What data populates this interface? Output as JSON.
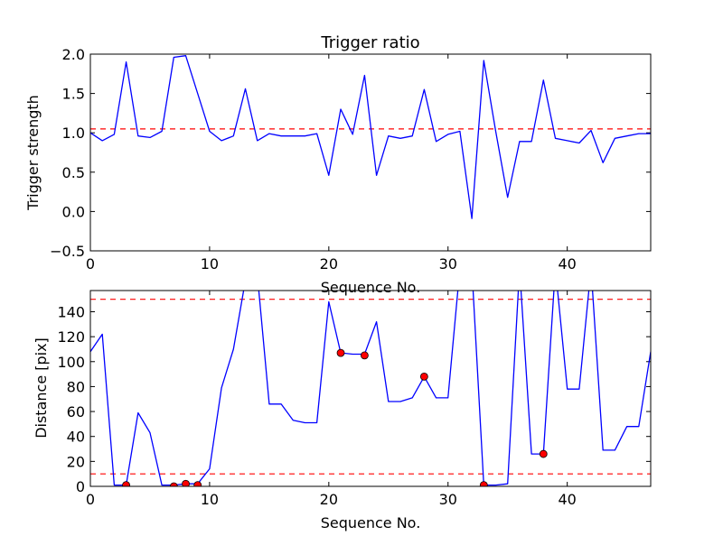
{
  "colors": {
    "line": "#0000ff",
    "threshold": "#ff0000",
    "marker": "#ff0000",
    "axes": "#000000",
    "background": "#ffffff"
  },
  "chart_data": [
    {
      "type": "line",
      "title": "Trigger ratio",
      "xlabel": "Sequence No.",
      "ylabel": "Trigger strength",
      "xlim": [
        0,
        47
      ],
      "ylim": [
        -0.5,
        2.0
      ],
      "xticks": [
        "0",
        "10",
        "20",
        "30",
        "40"
      ],
      "xtick_values": [
        0,
        10,
        20,
        30,
        40
      ],
      "yticks": [
        "−0.5",
        "0.0",
        "0.5",
        "1.0",
        "1.5",
        "2.0"
      ],
      "ytick_values": [
        -0.5,
        0.0,
        0.5,
        1.0,
        1.5,
        2.0
      ],
      "grid": false,
      "series": [
        {
          "x": [
            0,
            1,
            2,
            3,
            4,
            5,
            6,
            7,
            8,
            9,
            10,
            11,
            12,
            13,
            14,
            15,
            16,
            17,
            18,
            19,
            20,
            21,
            22,
            23,
            24,
            25,
            26,
            27,
            28,
            29,
            30,
            31,
            32,
            33,
            34,
            35,
            36,
            37,
            38,
            39,
            40,
            41,
            42,
            43,
            44,
            45,
            46,
            47
          ],
          "y": [
            1.0,
            0.9,
            0.98,
            1.9,
            0.96,
            0.94,
            1.02,
            1.96,
            1.98,
            1.5,
            1.02,
            0.9,
            0.96,
            1.56,
            0.9,
            0.99,
            0.96,
            0.96,
            0.96,
            0.99,
            0.46,
            1.3,
            0.98,
            1.73,
            0.46,
            0.96,
            0.93,
            0.96,
            1.55,
            0.89,
            0.98,
            1.02,
            -0.09,
            1.92,
            1.02,
            0.18,
            0.89,
            0.89,
            1.67,
            0.93,
            0.9,
            0.87,
            1.03,
            0.62,
            0.93,
            0.96,
            0.99,
            0.99
          ]
        }
      ],
      "hlines": [
        1.05
      ]
    },
    {
      "type": "line",
      "title": "",
      "xlabel": "Sequence No.",
      "ylabel": "Distance [pix]",
      "xlim": [
        0,
        47
      ],
      "ylim": [
        0,
        157
      ],
      "xticks": [
        "0",
        "10",
        "20",
        "30",
        "40"
      ],
      "xtick_values": [
        0,
        10,
        20,
        30,
        40
      ],
      "yticks": [
        "0",
        "20",
        "40",
        "60",
        "80",
        "100",
        "120",
        "140"
      ],
      "ytick_values": [
        0,
        20,
        40,
        60,
        80,
        100,
        120,
        140
      ],
      "grid": false,
      "series": [
        {
          "x": [
            0,
            1,
            2,
            3,
            4,
            5,
            6,
            7,
            8,
            9,
            10,
            11,
            12,
            13,
            14,
            15,
            16,
            17,
            18,
            19,
            20,
            21,
            22,
            23,
            24,
            25,
            26,
            27,
            28,
            29,
            30,
            31,
            32,
            33,
            34,
            35,
            36,
            37,
            38,
            39,
            40,
            41,
            42,
            43,
            44,
            45,
            46,
            47
          ],
          "y": [
            108,
            122,
            1,
            1,
            59,
            43,
            1,
            1,
            2,
            2,
            14,
            79,
            110,
            165,
            170,
            66,
            66,
            53,
            51,
            51,
            148,
            107,
            106,
            106,
            132,
            68,
            68,
            71,
            88,
            71,
            71,
            175,
            175,
            1,
            1,
            2,
            175,
            26,
            26,
            175,
            78,
            78,
            175,
            29,
            29,
            48,
            48,
            108
          ]
        }
      ],
      "markers": {
        "x": [
          3,
          7,
          8,
          9,
          21,
          23,
          28,
          33,
          38
        ],
        "y": [
          1,
          0,
          2,
          1,
          107,
          105,
          88,
          1,
          26
        ]
      },
      "hlines": [
        150,
        10
      ]
    }
  ]
}
